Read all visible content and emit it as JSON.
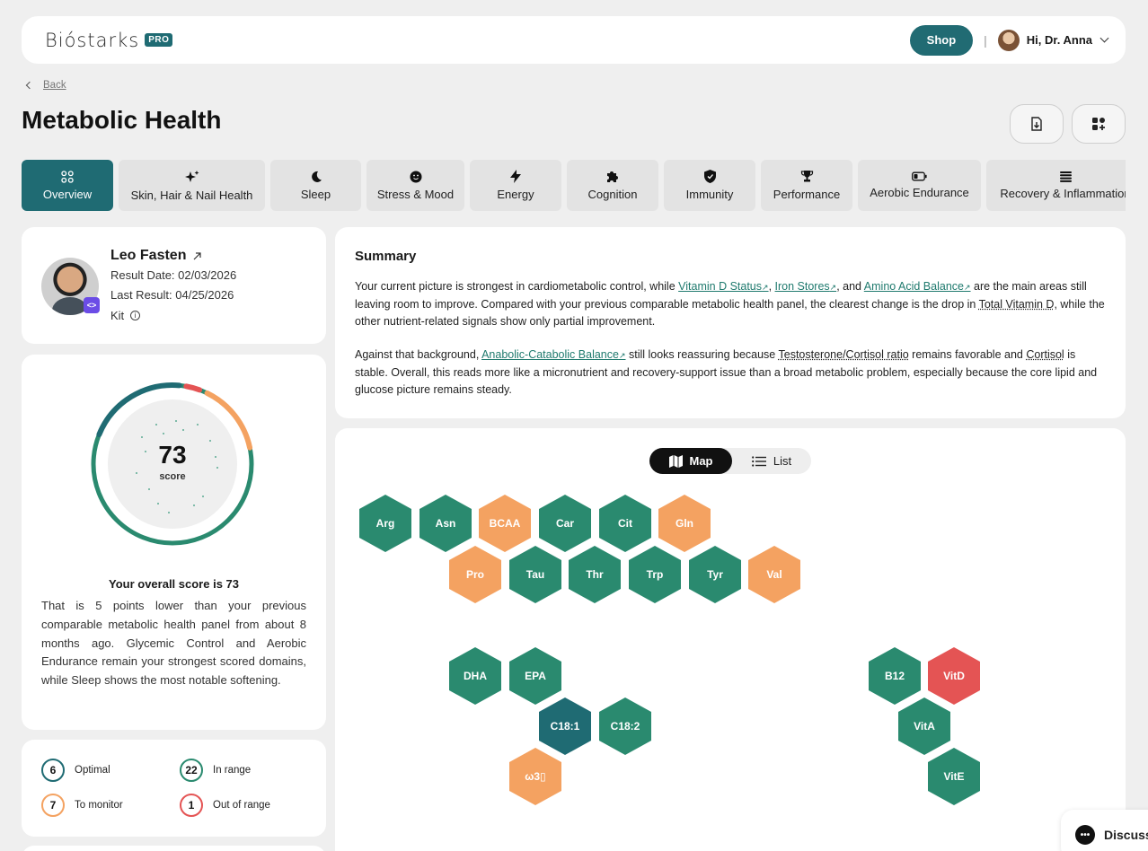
{
  "header": {
    "logo": "Bióstarks",
    "badge": "PRO",
    "shop_label": "Shop",
    "separator": "|",
    "greeting": "Hi, Dr. Anna"
  },
  "nav": {
    "back_label": "Back"
  },
  "page": {
    "title": "Metabolic Health"
  },
  "tabs": [
    {
      "label": "Overview",
      "icon": "grid-icon",
      "active": true
    },
    {
      "label": "Skin, Hair & Nail Health",
      "icon": "sparkle-icon"
    },
    {
      "label": "Sleep",
      "icon": "moon-icon"
    },
    {
      "label": "Stress & Mood",
      "icon": "smile-icon"
    },
    {
      "label": "Energy",
      "icon": "bolt-icon"
    },
    {
      "label": "Cognition",
      "icon": "puzzle-icon"
    },
    {
      "label": "Immunity",
      "icon": "shield-icon"
    },
    {
      "label": "Performance",
      "icon": "trophy-icon"
    },
    {
      "label": "Aerobic Endurance",
      "icon": "battery-icon"
    },
    {
      "label": "Recovery & Inflammation",
      "icon": "lines-icon"
    }
  ],
  "profile": {
    "name": "Leo Fasten",
    "result_date": "Result Date: 02/03/2026",
    "last_result": "Last Result: 04/25/2026",
    "kit_label": "Kit",
    "badge_glyph": "<>"
  },
  "score": {
    "value": "73",
    "unit": "score",
    "heading": "Your overall score is 73",
    "description": "That is 5 points lower than your previous comparable metabolic health panel from about 8 months ago. Glycemic Control and Aerobic Endurance remain your strongest scored domains, while Sleep shows the most notable softening."
  },
  "legend": [
    {
      "count": "6",
      "label": "Optimal",
      "color": "#1f6b73"
    },
    {
      "count": "22",
      "label": "In range",
      "color": "#2a8a6f"
    },
    {
      "count": "7",
      "label": "To monitor",
      "color": "#f4a261"
    },
    {
      "count": "1",
      "label": "Out of range",
      "color": "#e45454"
    }
  ],
  "summary": {
    "title": "Summary",
    "p1_a": "Your current picture is strongest in cardiometabolic control, while ",
    "p1_link1": "Vitamin D Status",
    "p1_b": ", ",
    "p1_link2": "Iron Stores",
    "p1_c": ", and ",
    "p1_link3": "Amino Acid Balance",
    "p1_d": " are the main areas still leaving room to improve. Compared with your previous comparable metabolic health panel, the clearest change is the drop in ",
    "p1_term": "Total Vitamin D",
    "p1_e": ", while the other nutrient-related signals show only partial improvement.",
    "p2_a": "Against that background, ",
    "p2_link": "Anabolic-Catabolic Balance",
    "p2_b": " still looks reassuring because ",
    "p2_term1": "Testosterone/Cortisol ratio",
    "p2_c": " remains favorable and ",
    "p2_term2": "Cortisol",
    "p2_d": " is stable. Overall, this reads more like a micronutrient and recovery-support issue than a broad metabolic problem, especially because the core lipid and glucose picture remains steady.",
    "ext_glyph": "↗"
  },
  "map_toggle": {
    "map_label": "Map",
    "list_label": "List"
  },
  "markers": [
    {
      "label": "Arg",
      "status": "g"
    },
    {
      "label": "Asn",
      "status": "g"
    },
    {
      "label": "BCAA",
      "status": "o"
    },
    {
      "label": "Car",
      "status": "g"
    },
    {
      "label": "Cit",
      "status": "g"
    },
    {
      "label": "Gln",
      "status": "o"
    },
    {
      "label": "Pro",
      "status": "o"
    },
    {
      "label": "Tau",
      "status": "g"
    },
    {
      "label": "Thr",
      "status": "g"
    },
    {
      "label": "Trp",
      "status": "g"
    },
    {
      "label": "Tyr",
      "status": "g"
    },
    {
      "label": "Val",
      "status": "o"
    },
    {
      "label": "DHA",
      "status": "g"
    },
    {
      "label": "EPA",
      "status": "g"
    },
    {
      "label": "C18:1",
      "status": "d"
    },
    {
      "label": "C18:2",
      "status": "g"
    },
    {
      "label": "ω3▯",
      "status": "o"
    },
    {
      "label": "B12",
      "status": "g"
    },
    {
      "label": "VitD",
      "status": "r"
    },
    {
      "label": "VitA",
      "status": "g"
    },
    {
      "label": "VitE",
      "status": "g"
    }
  ],
  "chat": {
    "label": "Discuss"
  }
}
